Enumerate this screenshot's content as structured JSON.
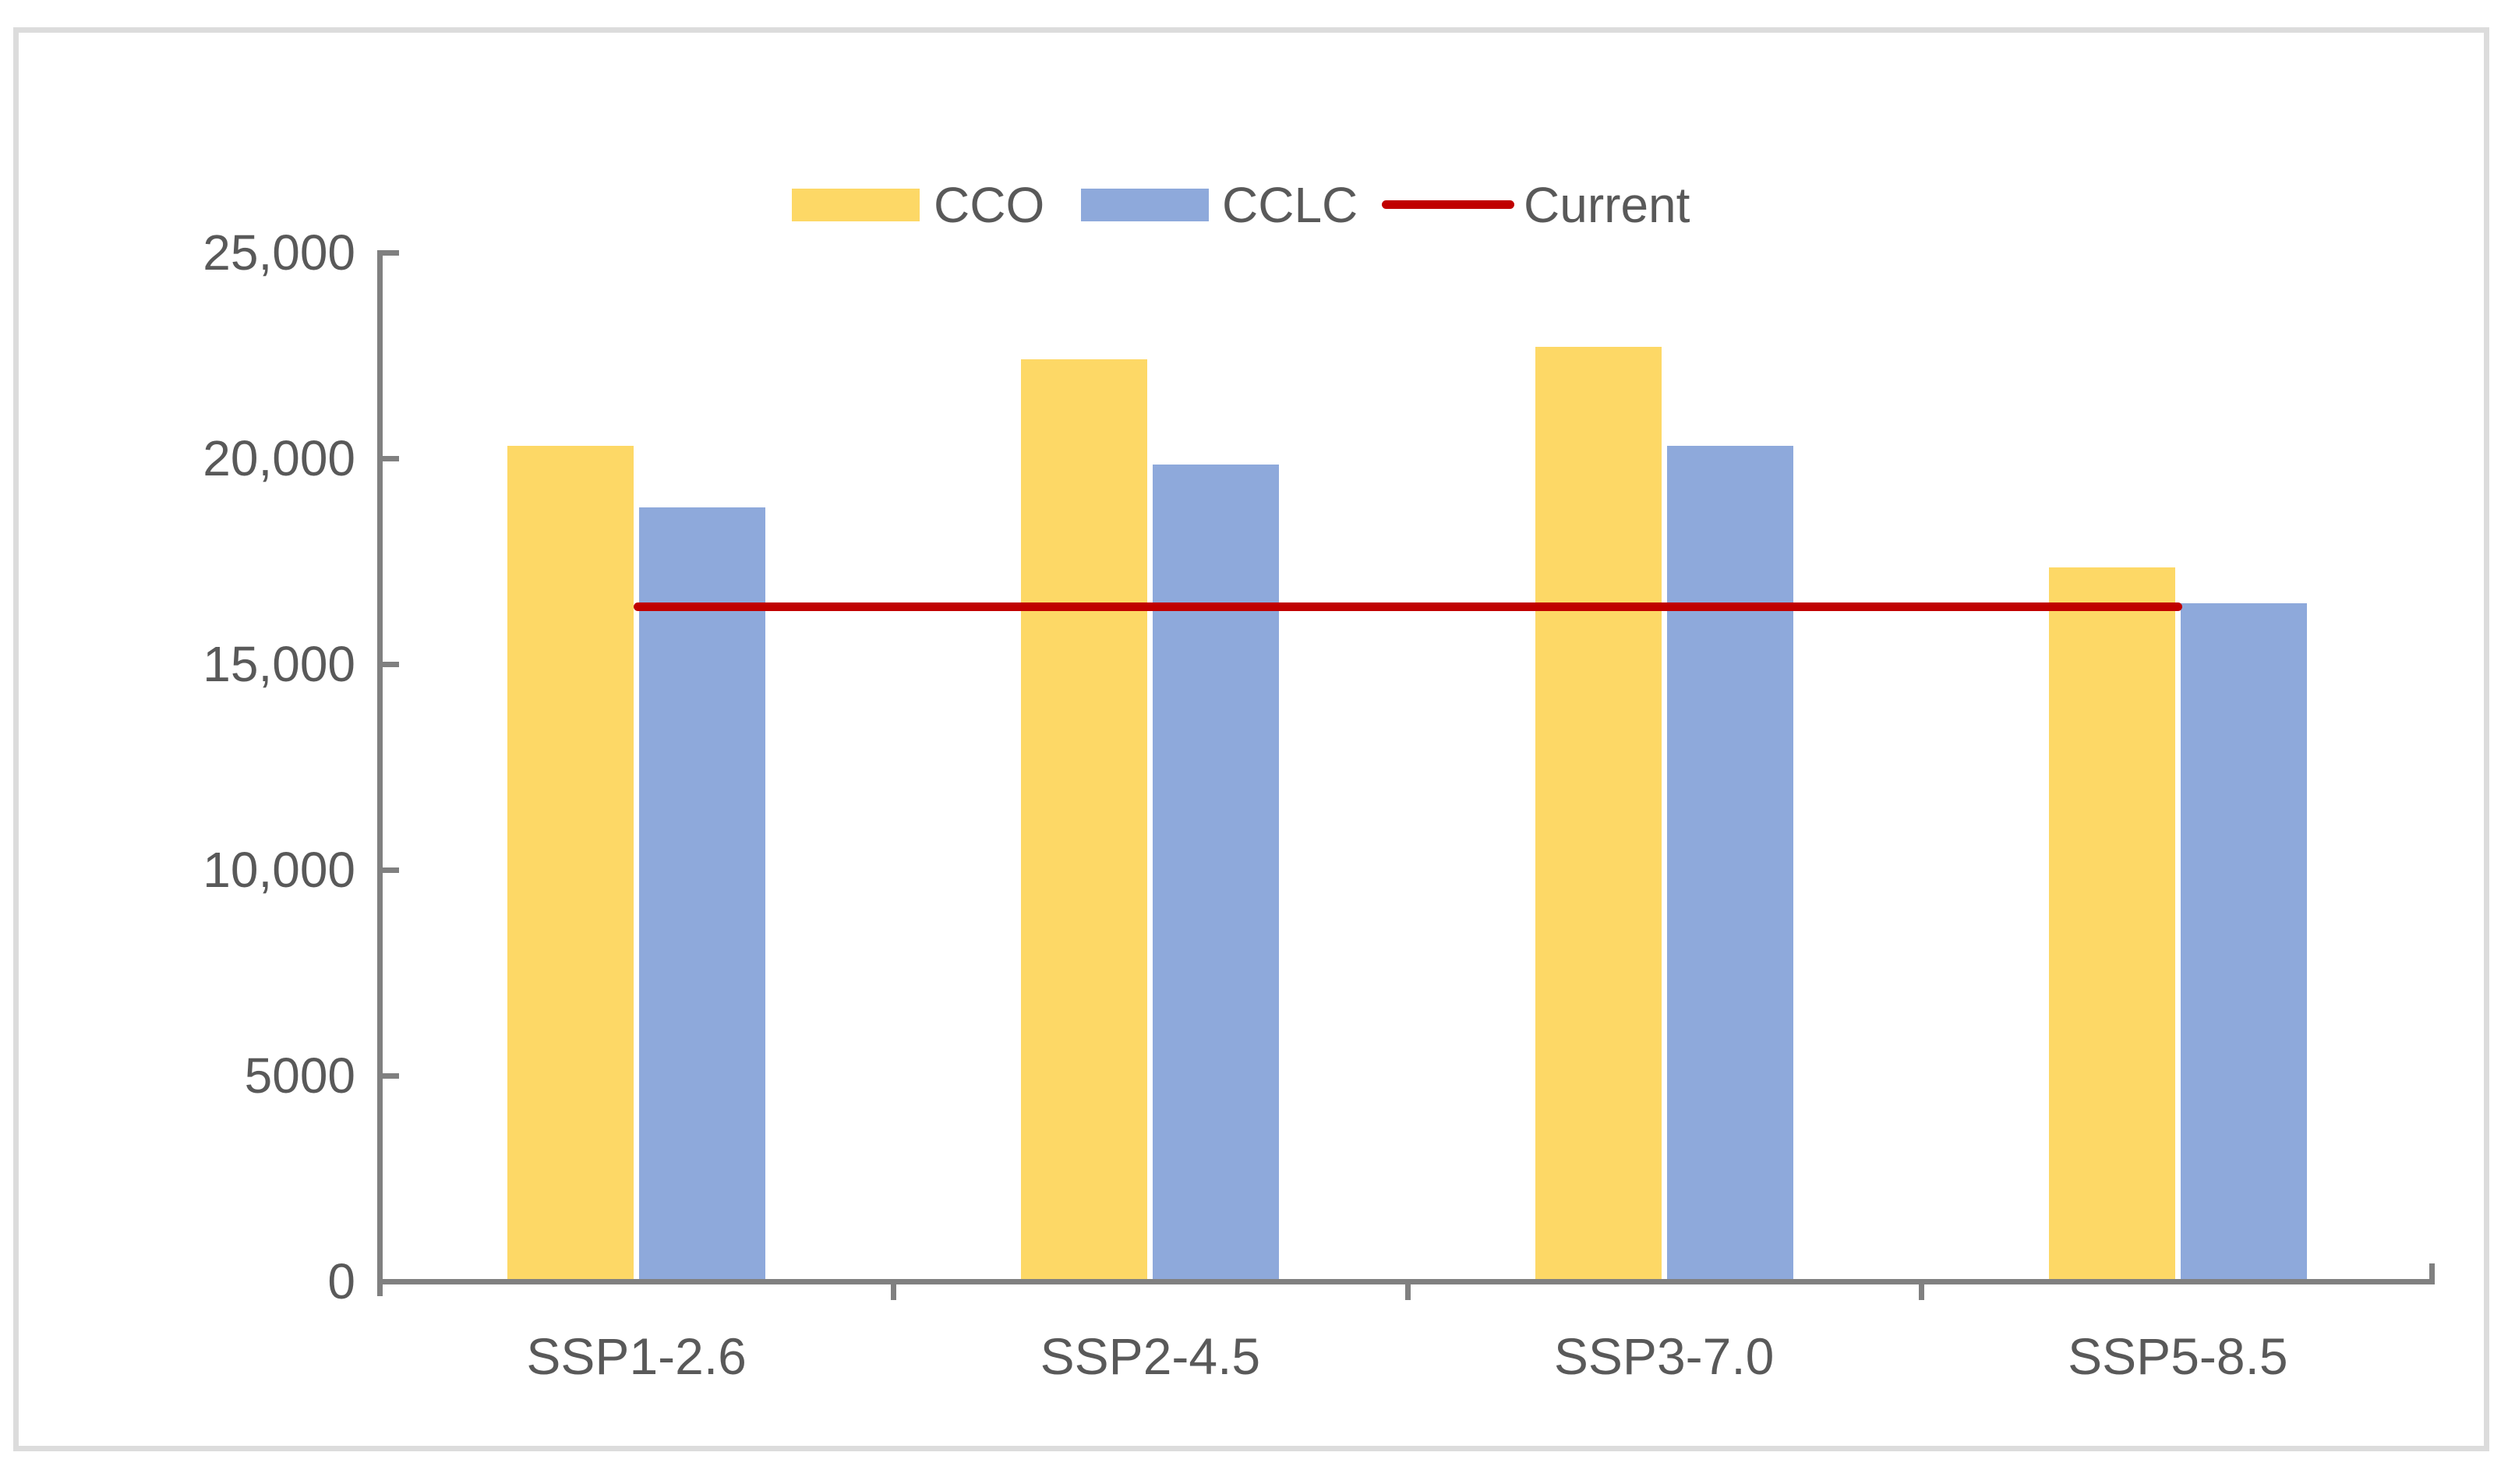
{
  "chart_data": {
    "type": "bar",
    "title": "",
    "categories": [
      "SSP1-2.6",
      "SSP2-4.5",
      "SSP3-7.0",
      "SSP5-8.5"
    ],
    "series": [
      {
        "name": "CCO",
        "values": [
          20300,
          22400,
          22700,
          17350
        ],
        "color": "#FDD866"
      },
      {
        "name": "CCLC",
        "values": [
          18800,
          19850,
          20300,
          16480
        ],
        "color": "#8EA9DB"
      }
    ],
    "reference_line": {
      "name": "Current",
      "value": 16400,
      "color": "#C00000"
    },
    "ylim": [
      0,
      25000
    ],
    "y_ticks": [
      {
        "label": "25,000",
        "value": 25000
      },
      {
        "label": "20,000",
        "value": 20000
      },
      {
        "label": "15,000",
        "value": 15000
      },
      {
        "label": "10,000",
        "value": 10000
      },
      {
        "label": "5000",
        "value": 5000
      },
      {
        "label": "0",
        "value": 0
      }
    ],
    "xlabel": "",
    "ylabel": "",
    "grid": false,
    "legend_position": "top"
  },
  "styles": {
    "text_color": "#595959",
    "axis_color": "#808080",
    "border_color": "#DCDCDC",
    "background": "#FFFFFF"
  }
}
